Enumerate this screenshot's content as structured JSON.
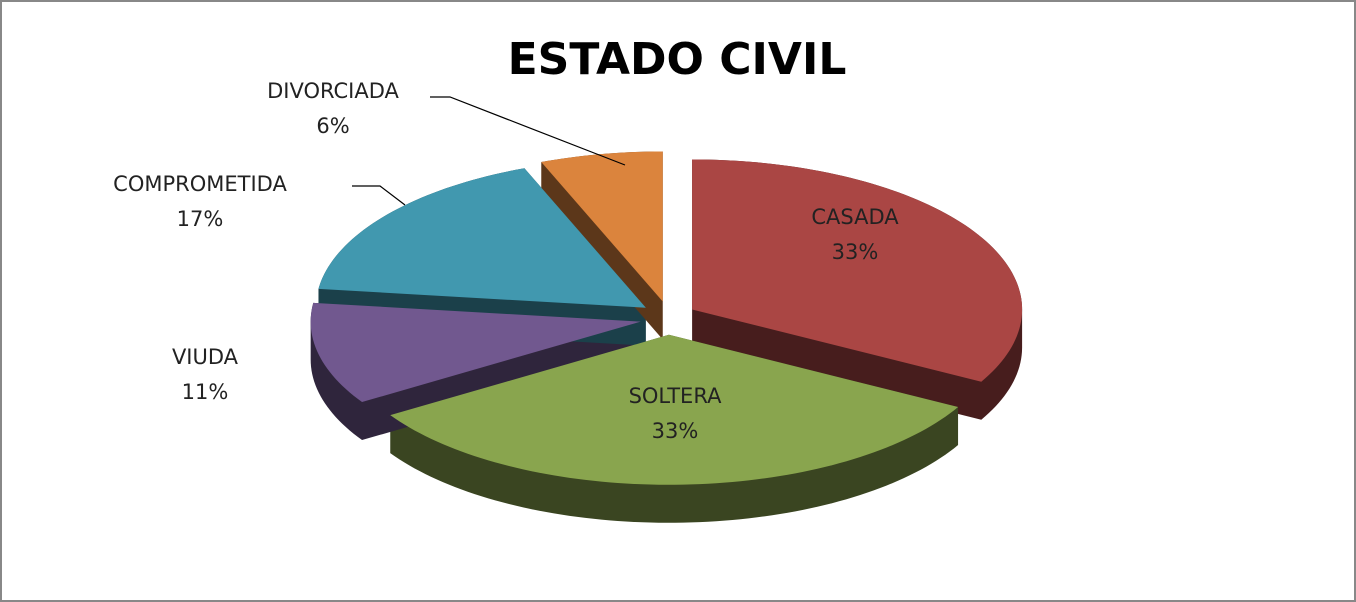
{
  "chart_data": {
    "type": "pie3d",
    "title": "ESTADO CIVIL",
    "categories": [
      "CASADA",
      "SOLTERA",
      "VIUDA",
      "COMPROMETIDA",
      "DIVORCIADA"
    ],
    "values": [
      33,
      33,
      11,
      17,
      6
    ],
    "value_labels": [
      "33%",
      "33%",
      "11%",
      "17%",
      "6%"
    ],
    "colors": [
      "#aa4644",
      "#89a54e",
      "#71588f",
      "#4198af",
      "#db843d"
    ]
  }
}
